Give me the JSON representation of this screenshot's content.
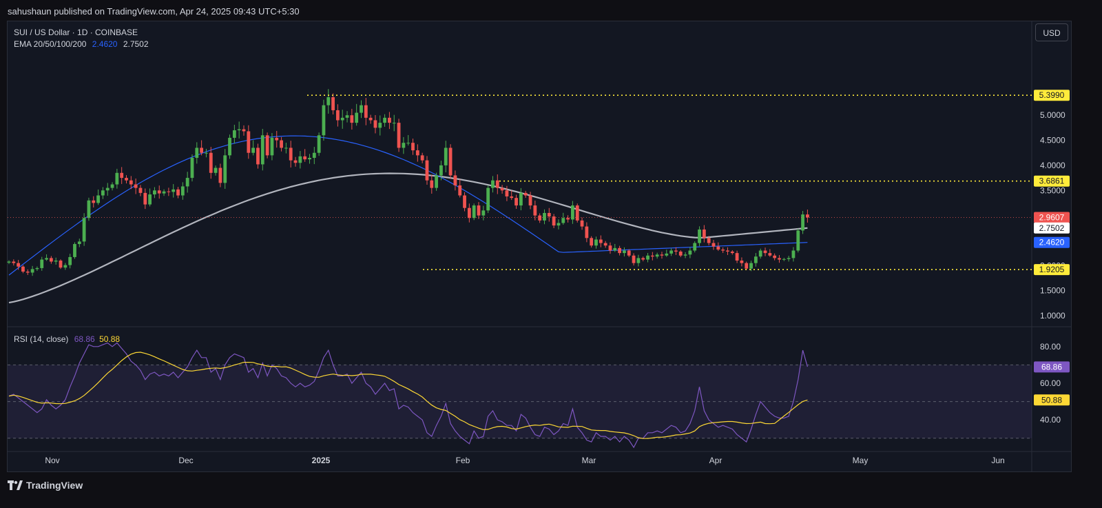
{
  "header": {
    "published": "sahushaun published on TradingView.com, Apr 24, 2025 09:43 UTC+5:30"
  },
  "legend": {
    "symbol": "SUI / US Dollar · 1D · COINBASE",
    "ema_label": "EMA 20/50/100/200",
    "ema_val1": "2.4620",
    "ema_val2": "2.7502",
    "rsi_label": "RSI (14, close)",
    "rsi_val": "68.86",
    "rsi_ma_val": "50.88"
  },
  "currency_button": "USD",
  "footer": {
    "brand": "TradingView"
  },
  "colors": {
    "background": "#131722",
    "up": "#26a69a",
    "up_green": "#4caf50",
    "down": "#ef5350",
    "ema50": "#2962ff",
    "ema200": "#b2b5be",
    "level_line": "#ffeb3b",
    "rsi_line": "#7e57c2",
    "rsi_ma": "#fdd835"
  },
  "chart_data": [
    {
      "type": "candlestick",
      "title": "SUI / US Dollar · 1D · COINBASE",
      "ylim": [
        0.8,
        5.6
      ],
      "price_ticks": [
        "1.0000",
        "1.5000",
        "2.0000",
        "2.5000",
        "3.0000",
        "3.5000",
        "4.0000",
        "4.5000",
        "5.0000"
      ],
      "x_ticks": [
        "Nov",
        "Dec",
        "2025",
        "Feb",
        "Mar",
        "Apr",
        "May",
        "Jun"
      ],
      "levels": [
        {
          "label": "5.3990",
          "value": 5.399
        },
        {
          "label": "3.6861",
          "value": 3.6861
        },
        {
          "label": "1.9205",
          "value": 1.9205
        }
      ],
      "last_price": {
        "label": "2.9607",
        "value": 2.9607
      },
      "ema_labels": [
        {
          "label": "2.7502",
          "value": 2.7502,
          "name": "EMA 200"
        },
        {
          "label": "2.4620",
          "value": 2.462,
          "name": "EMA 50"
        }
      ],
      "closes": [
        2.08,
        2.05,
        1.98,
        1.88,
        1.86,
        1.93,
        1.95,
        2.12,
        2.15,
        2.08,
        2.1,
        1.96,
        2.01,
        2.17,
        2.43,
        2.48,
        2.95,
        3.3,
        3.25,
        3.4,
        3.5,
        3.55,
        3.62,
        3.85,
        3.75,
        3.7,
        3.62,
        3.55,
        3.45,
        3.22,
        3.42,
        3.5,
        3.44,
        3.48,
        3.47,
        3.52,
        3.4,
        3.58,
        3.75,
        4.15,
        4.35,
        4.25,
        4.25,
        3.85,
        3.95,
        3.65,
        4.2,
        4.55,
        4.7,
        4.72,
        4.68,
        4.25,
        4.35,
        4.02,
        4.6,
        4.2,
        4.55,
        4.5,
        4.35,
        4.35,
        4.1,
        4.05,
        4.18,
        4.12,
        4.15,
        4.25,
        4.6,
        5.2,
        5.36,
        5.1,
        4.9,
        4.95,
        5.0,
        4.85,
        5.05,
        5.2,
        4.95,
        4.9,
        4.75,
        4.85,
        4.95,
        4.85,
        4.85,
        4.35,
        4.45,
        4.45,
        4.3,
        4.2,
        4.1,
        3.7,
        3.55,
        3.8,
        4.0,
        4.35,
        3.8,
        3.6,
        3.4,
        3.15,
        2.95,
        3.2,
        3.0,
        3.1,
        3.55,
        3.7,
        3.55,
        3.5,
        3.38,
        3.35,
        3.2,
        3.45,
        3.4,
        3.2,
        3.0,
        2.9,
        3.05,
        2.98,
        2.8,
        2.85,
        2.95,
        2.92,
        3.2,
        2.9,
        2.78,
        2.55,
        2.4,
        2.52,
        2.45,
        2.4,
        2.3,
        2.35,
        2.25,
        2.3,
        2.2,
        2.05,
        2.15,
        2.12,
        2.2,
        2.18,
        2.22,
        2.2,
        2.24,
        2.3,
        2.28,
        2.2,
        2.22,
        2.3,
        2.45,
        2.72,
        2.55,
        2.45,
        2.38,
        2.32,
        2.3,
        2.28,
        2.25,
        2.1,
        2.05,
        1.94,
        2.05,
        2.18,
        2.3,
        2.25,
        2.2,
        2.15,
        2.12,
        2.13,
        2.15,
        2.3,
        2.7,
        3.02,
        2.96
      ],
      "series": [
        {
          "name": "EMA 50",
          "start": 1.81,
          "end": 2.462
        },
        {
          "name": "EMA 200",
          "start": 1.26,
          "end": 2.7502
        }
      ]
    },
    {
      "type": "line",
      "title": "RSI (14, close)",
      "ylim": [
        24,
        86
      ],
      "ticks": [
        "40.00",
        "60.00",
        "80.00"
      ],
      "bands": [
        30,
        50,
        70
      ],
      "series": [
        {
          "name": "RSI",
          "last": 68.86,
          "values": [
            53,
            54,
            52,
            50,
            48,
            46,
            44,
            46,
            51,
            48,
            46,
            48,
            51,
            58,
            64,
            71,
            76,
            81,
            80,
            80,
            81,
            82,
            80,
            82,
            79,
            76,
            72,
            70,
            67,
            62,
            65,
            66,
            64,
            65,
            64,
            66,
            63,
            66,
            69,
            74,
            78,
            74,
            74,
            66,
            68,
            62,
            70,
            74,
            76,
            75,
            74,
            66,
            68,
            63,
            71,
            64,
            70,
            68,
            64,
            63,
            60,
            58,
            60,
            58,
            59,
            61,
            67,
            74,
            78,
            70,
            64,
            64,
            65,
            60,
            63,
            66,
            60,
            58,
            54,
            57,
            60,
            56,
            57,
            46,
            48,
            47,
            44,
            42,
            40,
            33,
            31,
            37,
            42,
            49,
            38,
            34,
            31,
            29,
            27,
            34,
            30,
            31,
            42,
            45,
            40,
            39,
            37,
            37,
            34,
            43,
            41,
            36,
            32,
            31,
            36,
            35,
            32,
            34,
            38,
            37,
            46,
            36,
            33,
            29,
            28,
            33,
            31,
            31,
            29,
            31,
            28,
            31,
            29,
            25,
            30,
            30,
            33,
            33,
            34,
            33,
            35,
            37,
            36,
            33,
            34,
            38,
            45,
            58,
            45,
            40,
            38,
            36,
            37,
            36,
            35,
            32,
            30,
            28,
            35,
            43,
            50,
            47,
            44,
            42,
            41,
            41,
            42,
            50,
            62,
            78,
            69
          ]
        },
        {
          "name": "RSI MA",
          "last": 50.88
        }
      ]
    }
  ]
}
